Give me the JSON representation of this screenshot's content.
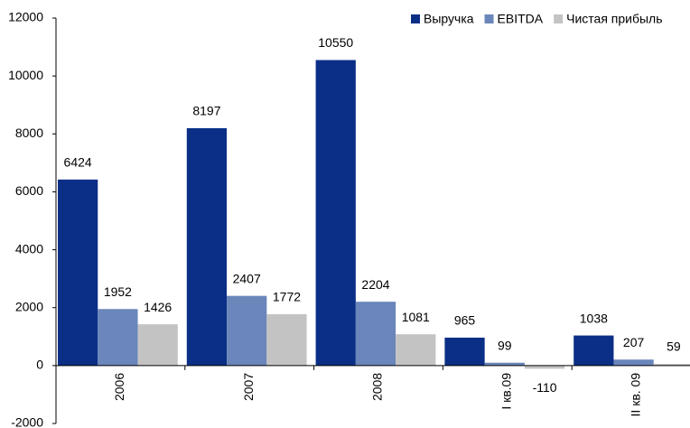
{
  "chart_data": {
    "type": "bar",
    "categories": [
      "2006",
      "2007",
      "2008",
      "I кв.09",
      "II кв. 09"
    ],
    "series": [
      {
        "name": "Выручка",
        "color": "#0b2f86",
        "values": [
          6424,
          8197,
          10550,
          965,
          1038
        ]
      },
      {
        "name": "EBITDA",
        "color": "#6a86ba",
        "values": [
          1952,
          2407,
          2204,
          99,
          207
        ]
      },
      {
        "name": "Чистая прибыль",
        "color": "#c3c3c3",
        "values": [
          1426,
          1772,
          1081,
          -110,
          59
        ]
      }
    ],
    "ylim": [
      -2000,
      12000
    ],
    "yticks": [
      -2000,
      0,
      2000,
      4000,
      6000,
      8000,
      10000,
      12000
    ],
    "legend": "top-right"
  }
}
